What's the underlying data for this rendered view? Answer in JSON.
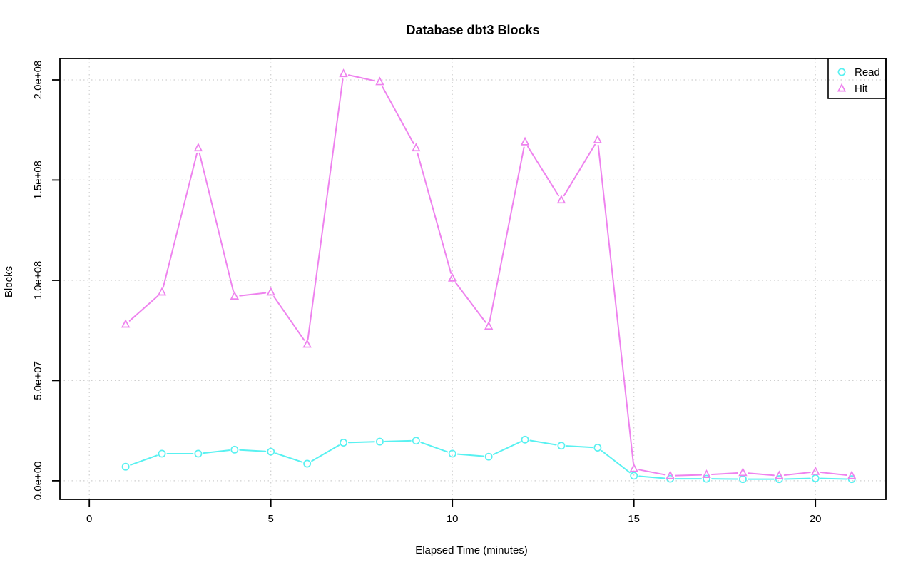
{
  "title": "Database dbt3 Blocks",
  "chart_data": {
    "type": "line",
    "title": "Database dbt3 Blocks",
    "xlabel": "Elapsed Time (minutes)",
    "ylabel": "Blocks",
    "grid": true,
    "legend_position": "top-right",
    "xlim": [
      -0.81,
      21.94
    ],
    "ylim": [
      -9300000,
      210700000
    ],
    "xticks": [
      0,
      5,
      10,
      15,
      20
    ],
    "xtick_labels": [
      "0",
      "5",
      "10",
      "15",
      "20"
    ],
    "yticks": [
      0,
      50000000,
      100000000,
      150000000,
      200000000
    ],
    "ytick_labels": [
      "0.0e+00",
      "5.0e+07",
      "1.0e+08",
      "1.5e+08",
      "2.0e+08"
    ],
    "x": [
      1,
      2,
      3,
      4,
      5,
      6,
      7,
      8,
      9,
      10,
      11,
      12,
      13,
      14,
      15,
      16,
      17,
      18,
      19,
      20,
      21
    ],
    "series": [
      {
        "name": "Read",
        "marker": "circle",
        "color": "#58F1F1",
        "values": [
          7000000,
          13500000,
          13500000,
          15500000,
          14500000,
          8500000,
          19000000,
          19500000,
          20000000,
          13500000,
          12000000,
          20500000,
          17500000,
          16500000,
          2500000,
          1000000,
          1000000,
          800000,
          800000,
          1200000,
          800000
        ]
      },
      {
        "name": "Hit",
        "marker": "triangle",
        "color": "#EE82EE",
        "values": [
          78000000,
          94000000,
          166000000,
          92000000,
          94000000,
          68000000,
          203000000,
          199000000,
          166000000,
          101000000,
          77000000,
          169000000,
          140000000,
          170000000,
          6000000,
          2500000,
          3000000,
          4000000,
          2500000,
          4500000,
          2500000
        ]
      }
    ]
  }
}
